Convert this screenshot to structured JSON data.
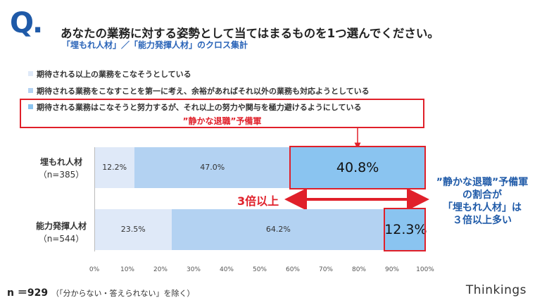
{
  "header": {
    "q_mark": "Q.",
    "question": "あなたの業務に対する姿勢として当てはまるものを1つ選んでください。",
    "subtitle": "「埋もれ人材」／「能力発揮人材」のクロス集計"
  },
  "callout": {
    "quiet_text": "”静かな退職”予備軍"
  },
  "arrow_label": "3倍以上",
  "note": {
    "lines": [
      "”静かな退職”予備軍",
      "の割合が",
      "「埋もれ人材」は",
      "３倍以上多い"
    ]
  },
  "footer": {
    "n_text": "n ＝929",
    "n_note": "（「分からない・答えられない」を除く）",
    "brand": "Thinkings"
  },
  "colors": {
    "series1": "#dfe9f8",
    "series2": "#b3d2f2",
    "series3": "#8ac4f0",
    "accent_red": "#e0202a",
    "accent_blue": "#1f5aa8"
  },
  "chart_data": {
    "type": "bar",
    "orientation": "horizontal-stacked",
    "categories": [
      "埋もれ人材",
      "能力発揮人材"
    ],
    "category_n": [
      "（n=385）",
      "（n=544）"
    ],
    "series": [
      {
        "name": "期待される以上の業務をこなそうとしている",
        "values": [
          12.2,
          23.5
        ],
        "labels": [
          "12.2%",
          "23.5%"
        ]
      },
      {
        "name": "期待される業務をこなすことを第一に考え、余裕があればそれ以外の業務も対応ようとしている",
        "values": [
          47.0,
          64.2
        ],
        "labels": [
          "47.0%",
          "64.2%"
        ]
      },
      {
        "name": "期待される業務はこなそうと努力するが、それ以上の努力や関与を極力避けるようにしている",
        "values": [
          40.8,
          12.3
        ],
        "labels": [
          "40.8%",
          "12.3%"
        ]
      }
    ],
    "xlim": [
      0,
      100
    ],
    "xticks": [
      "0%",
      "10%",
      "20%",
      "30%",
      "40%",
      "50%",
      "60%",
      "70%",
      "80%",
      "90%",
      "100%"
    ],
    "grid": false,
    "legend": "top-left"
  }
}
